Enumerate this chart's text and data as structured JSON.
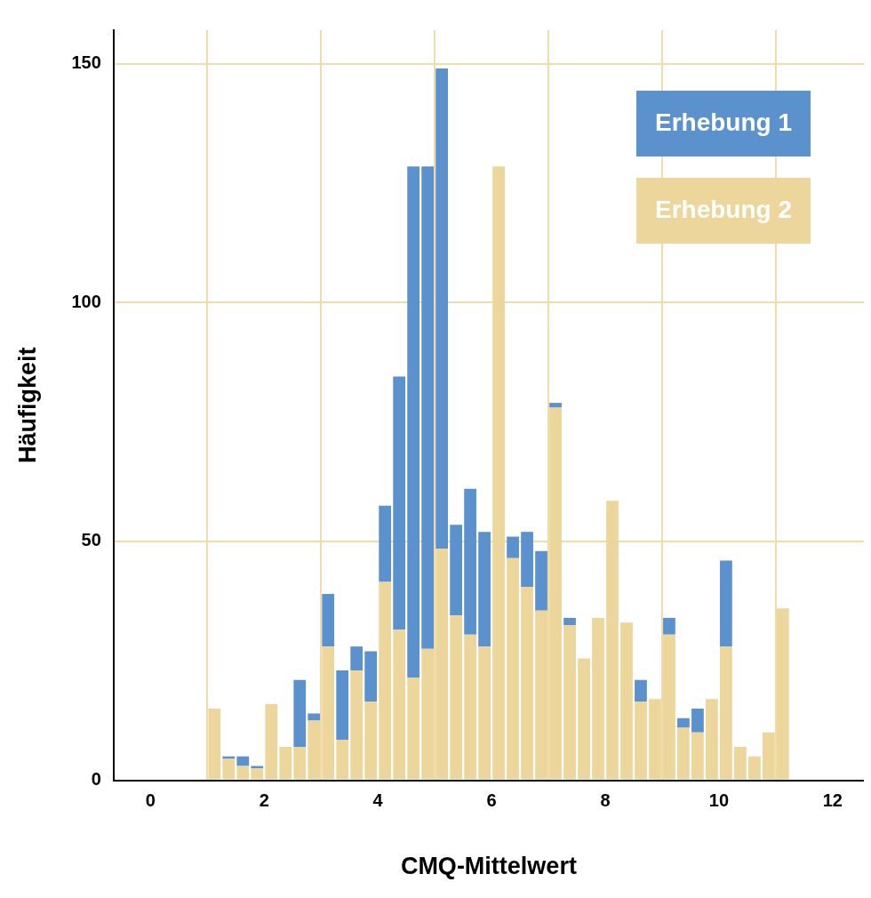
{
  "chart_data": {
    "type": "bar",
    "xlabel": "CMQ-Mittelwert",
    "ylabel": "Häufigkeit",
    "x": [
      1.125,
      1.375,
      1.625,
      1.875,
      2.125,
      2.375,
      2.625,
      2.875,
      3.125,
      3.375,
      3.625,
      3.875,
      4.125,
      4.375,
      4.625,
      4.875,
      5.125,
      5.375,
      5.625,
      5.875,
      6.125,
      6.375,
      6.625,
      6.875,
      7.125,
      7.375,
      7.625,
      7.875,
      8.125,
      8.375,
      8.625,
      8.875,
      9.125,
      9.375,
      9.625,
      9.875,
      10.125,
      10.375,
      10.625,
      10.875,
      11.125
    ],
    "series": [
      {
        "name": "Erhebung 2",
        "color": "#edd69b",
        "values": [
          15,
          4.5,
          3,
          2.5,
          16,
          7,
          7,
          12.5,
          28,
          8.5,
          23,
          16.5,
          41.5,
          31.5,
          21.5,
          27.5,
          48.5,
          34.5,
          30.5,
          28,
          128.5,
          46.5,
          40.5,
          35.5,
          78,
          32.5,
          25.5,
          34,
          58.5,
          33,
          16.5,
          17,
          30.5,
          11,
          10,
          17,
          28,
          7,
          5,
          10,
          36
        ]
      },
      {
        "name": "Erhebung 1",
        "color": "#5b91cc",
        "values": [
          0,
          0.5,
          2,
          0.5,
          0,
          0,
          14,
          1.5,
          11,
          14.5,
          5,
          10.5,
          16,
          53,
          107,
          101,
          100.5,
          19,
          30.5,
          24,
          0,
          4.5,
          11.5,
          12.5,
          1,
          1.5,
          0,
          0,
          0,
          0,
          4.5,
          0,
          3.5,
          2,
          5,
          0,
          18,
          0,
          0,
          0,
          0
        ]
      }
    ],
    "stacked": true,
    "xlim": [
      -0.65,
      12.55
    ],
    "xticks": [
      0,
      2,
      4,
      6,
      8,
      10,
      12
    ],
    "ylim": [
      0,
      157
    ],
    "yticks": [
      0,
      50,
      100,
      150
    ],
    "grid": true,
    "legend": "top right"
  }
}
